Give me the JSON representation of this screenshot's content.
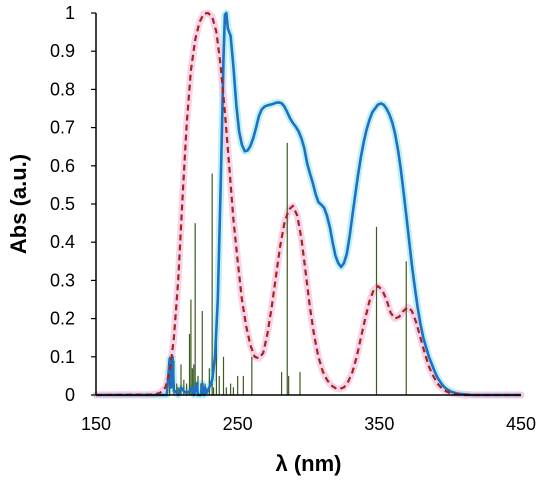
{
  "chart_data": {
    "type": "line",
    "xlabel": "λ (nm)",
    "ylabel": "Abs (a.u.)",
    "xlim": [
      150,
      450
    ],
    "ylim": [
      0,
      1
    ],
    "xticks": [
      "150",
      "250",
      "350",
      "450"
    ],
    "xtick_values": [
      150,
      250,
      350,
      450
    ],
    "yticks": [
      "0",
      "0.1",
      "0.2",
      "0.3",
      "0.4",
      "0.5",
      "0.6",
      "0.7",
      "0.8",
      "0.9",
      "1"
    ],
    "ytick_values": [
      0,
      0.1,
      0.2,
      0.3,
      0.4,
      0.5,
      0.6,
      0.7,
      0.8,
      0.9,
      1.0
    ],
    "grid": false,
    "legend": "none",
    "series": [
      {
        "style": "solid",
        "color": "#1f6fc5",
        "glow_color": "#a8ecec",
        "x": [
          150,
          200,
          201,
          202,
          203,
          204,
          205,
          206,
          208,
          210,
          212,
          214,
          216,
          218,
          219,
          220,
          221,
          222,
          224,
          225,
          226,
          227,
          228,
          230,
          232,
          234,
          236,
          238,
          240,
          241,
          242,
          243,
          245,
          247,
          249,
          251,
          253,
          255,
          257,
          259,
          261,
          263,
          265,
          267,
          269,
          271,
          273,
          275,
          277,
          279,
          281,
          283,
          285,
          287,
          289,
          291,
          293,
          295,
          297,
          299,
          301,
          303,
          305,
          307,
          309,
          311,
          313,
          315,
          317,
          319,
          321,
          323,
          325,
          327,
          329,
          331,
          333,
          335,
          337,
          339,
          341,
          343,
          345,
          347,
          349,
          351,
          353,
          355,
          357,
          359,
          361,
          363,
          365,
          367,
          369,
          371,
          373,
          375,
          377,
          379,
          381,
          383,
          385,
          387,
          389,
          391,
          393,
          395,
          397,
          399,
          401,
          403,
          405,
          407,
          409,
          411,
          413,
          415,
          417,
          419,
          421,
          423,
          425,
          427,
          429,
          431,
          433,
          435,
          450
        ],
        "y": [
          0,
          0,
          0.05,
          0.095,
          0.02,
          0.1,
          0.01,
          0.01,
          0,
          0.02,
          0.01,
          0.005,
          0.01,
          0.02,
          0,
          0.01,
          0.03,
          0,
          0,
          0.03,
          0,
          0.02,
          0.005,
          0.02,
          0.04,
          0.1,
          0.25,
          0.55,
          0.88,
          0.995,
          1.0,
          0.96,
          0.94,
          0.86,
          0.76,
          0.69,
          0.655,
          0.638,
          0.64,
          0.652,
          0.673,
          0.7,
          0.73,
          0.748,
          0.755,
          0.758,
          0.76,
          0.762,
          0.765,
          0.766,
          0.764,
          0.755,
          0.74,
          0.724,
          0.712,
          0.702,
          0.69,
          0.672,
          0.646,
          0.607,
          0.58,
          0.555,
          0.526,
          0.505,
          0.498,
          0.49,
          0.47,
          0.44,
          0.4,
          0.365,
          0.345,
          0.335,
          0.345,
          0.37,
          0.415,
          0.47,
          0.525,
          0.577,
          0.623,
          0.663,
          0.695,
          0.72,
          0.74,
          0.75,
          0.76,
          0.763,
          0.76,
          0.75,
          0.735,
          0.715,
          0.686,
          0.645,
          0.595,
          0.535,
          0.47,
          0.405,
          0.34,
          0.282,
          0.23,
          0.186,
          0.15,
          0.125,
          0.1,
          0.081,
          0.062,
          0.046,
          0.034,
          0.024,
          0.017,
          0.012,
          0.008,
          0.006,
          0.004,
          0.003,
          0.002,
          0.001,
          0.001,
          0,
          0,
          0,
          0,
          0,
          0,
          0,
          0,
          0,
          0,
          0,
          0
        ]
      },
      {
        "style": "dashed",
        "color": "#a0291b",
        "glow_color": "#f4c6e4",
        "x": [
          150,
          190,
          195,
          199,
          202,
          205,
          208,
          211,
          214,
          217,
          220,
          223,
          226,
          229,
          232,
          235,
          238,
          241,
          244,
          247,
          250,
          253,
          256,
          259,
          262,
          265,
          268,
          271,
          274,
          277,
          280,
          283,
          286,
          289,
          292,
          295,
          298,
          301,
          304,
          307,
          310,
          313,
          316,
          319,
          322,
          325,
          328,
          331,
          334,
          337,
          340,
          343,
          346,
          349,
          352,
          355,
          358,
          361,
          364,
          367,
          370,
          373,
          376,
          379,
          382,
          385,
          388,
          391,
          394,
          397,
          400,
          405,
          410,
          450
        ],
        "y": [
          0,
          0.001,
          0.005,
          0.02,
          0.06,
          0.15,
          0.3,
          0.51,
          0.71,
          0.85,
          0.93,
          0.975,
          0.998,
          1.0,
          0.99,
          0.95,
          0.86,
          0.74,
          0.6,
          0.46,
          0.35,
          0.25,
          0.18,
          0.13,
          0.1,
          0.096,
          0.11,
          0.16,
          0.23,
          0.31,
          0.39,
          0.45,
          0.485,
          0.495,
          0.47,
          0.41,
          0.32,
          0.23,
          0.155,
          0.1,
          0.062,
          0.04,
          0.025,
          0.018,
          0.016,
          0.02,
          0.035,
          0.06,
          0.1,
          0.15,
          0.2,
          0.245,
          0.275,
          0.285,
          0.275,
          0.25,
          0.215,
          0.2,
          0.205,
          0.22,
          0.23,
          0.22,
          0.19,
          0.15,
          0.11,
          0.075,
          0.05,
          0.03,
          0.018,
          0.01,
          0.005,
          0.002,
          0,
          0
        ]
      }
    ],
    "sticks": {
      "color": "#3e5c22",
      "x": [
        202,
        205,
        207,
        208,
        210,
        212,
        214,
        216,
        217,
        218,
        219,
        220,
        222,
        224,
        225,
        227,
        230,
        232,
        233,
        235,
        237,
        240,
        242,
        245,
        247,
        250,
        254,
        260,
        281,
        285,
        286,
        294,
        348,
        369
      ],
      "y": [
        0.1,
        0.09,
        0.03,
        0.02,
        0.08,
        0.04,
        0.03,
        0.16,
        0.25,
        0.07,
        0.08,
        0.45,
        0.05,
        0.03,
        0.22,
        0.03,
        0.07,
        0.58,
        0.02,
        0.2,
        0.05,
        0.1,
        0.02,
        0.03,
        0.02,
        0.05,
        0.05,
        0.1,
        0.06,
        0.66,
        0.05,
        0.06,
        0.44,
        0.35
      ]
    }
  }
}
